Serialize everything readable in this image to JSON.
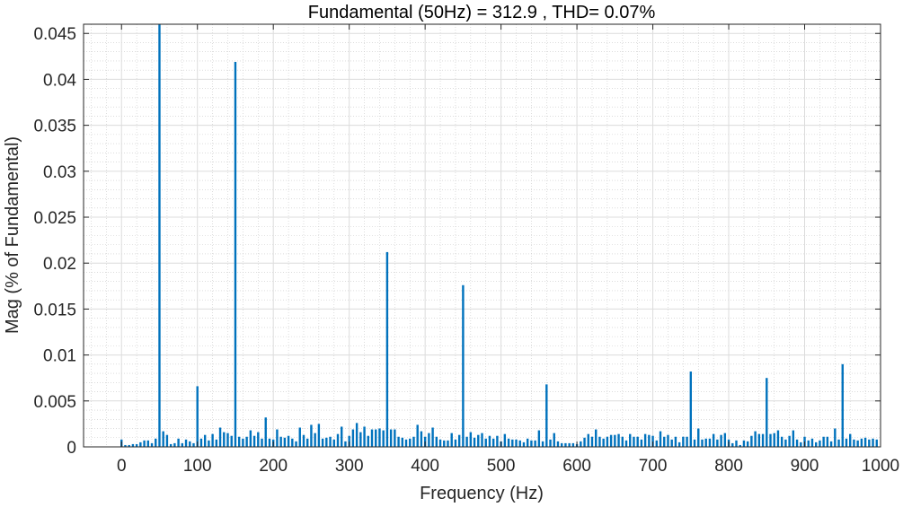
{
  "chart_data": {
    "type": "bar",
    "title": "Fundamental (50Hz) = 312.9 , THD= 0.07%",
    "xlabel": "Frequency (Hz)",
    "ylabel": "Mag (% of Fundamental)",
    "xlim": [
      -50,
      1000
    ],
    "ylim": [
      0,
      0.046
    ],
    "xticks": [
      0,
      100,
      200,
      300,
      400,
      500,
      600,
      700,
      800,
      900,
      1000
    ],
    "xtick_labels": [
      "0",
      "100",
      "200",
      "300",
      "400",
      "500",
      "600",
      "700",
      "800",
      "900",
      "1000"
    ],
    "yticks": [
      0,
      0.005,
      0.01,
      0.015,
      0.02,
      0.025,
      0.03,
      0.035,
      0.04,
      0.045
    ],
    "ytick_labels": [
      "0",
      "0.005",
      "0.01",
      "0.015",
      "0.02",
      "0.025",
      "0.03",
      "0.035",
      "0.04",
      "0.045"
    ],
    "grid": true,
    "minor_grid": true,
    "bar_color": "#0072BD",
    "x_step": 5,
    "series": [
      {
        "values": [
          0.0008,
          0.0002,
          0.0002,
          0.0003,
          0.0003,
          0.0005,
          0.0007,
          0.0007,
          0.0004,
          0.0009,
          0.046,
          0.0017,
          0.0013,
          0.0003,
          0.0004,
          0.0009,
          0.0004,
          0.0008,
          0.0006,
          0.0004,
          0.0066,
          0.0009,
          0.0013,
          0.0007,
          0.0014,
          0.0008,
          0.0021,
          0.0016,
          0.0015,
          0.0012,
          0.0419,
          0.0011,
          0.0009,
          0.0011,
          0.0018,
          0.0012,
          0.0016,
          0.0009,
          0.0032,
          0.0009,
          0.0008,
          0.0019,
          0.0011,
          0.001,
          0.0012,
          0.0009,
          0.0006,
          0.0021,
          0.0013,
          0.0009,
          0.0024,
          0.0015,
          0.0025,
          0.0009,
          0.001,
          0.0011,
          0.0008,
          0.0014,
          0.0022,
          0.0006,
          0.0012,
          0.0019,
          0.0026,
          0.0016,
          0.0022,
          0.0012,
          0.0019,
          0.0019,
          0.002,
          0.0018,
          0.0212,
          0.0019,
          0.0019,
          0.0011,
          0.001,
          0.0008,
          0.0009,
          0.0011,
          0.0024,
          0.0017,
          0.0011,
          0.0015,
          0.0021,
          0.0011,
          0.0008,
          0.0007,
          0.0007,
          0.0015,
          0.0008,
          0.0013,
          0.0176,
          0.0011,
          0.0016,
          0.001,
          0.0013,
          0.0015,
          0.0009,
          0.0012,
          0.0009,
          0.0012,
          0.0006,
          0.0014,
          0.0009,
          0.0008,
          0.0008,
          0.0007,
          0.0005,
          0.0009,
          0.0007,
          0.0007,
          0.0018,
          0.0006,
          0.0068,
          0.0008,
          0.0015,
          0.0006,
          0.0004,
          0.0004,
          0.0004,
          0.0004,
          0.0003,
          0.0006,
          0.001,
          0.0014,
          0.0011,
          0.0019,
          0.0011,
          0.0009,
          0.0011,
          0.0013,
          0.0013,
          0.0014,
          0.0011,
          0.0007,
          0.0014,
          0.0011,
          0.0011,
          0.0008,
          0.0014,
          0.0013,
          0.0012,
          0.0007,
          0.0017,
          0.0011,
          0.0013,
          0.0008,
          0.0011,
          0.0005,
          0.0011,
          0.0011,
          0.0082,
          0.0008,
          0.002,
          0.0008,
          0.0009,
          0.0009,
          0.0014,
          0.0008,
          0.0013,
          0.0015,
          0.0008,
          0.0004,
          0.0007,
          0.0002,
          0.0007,
          0.0006,
          0.0012,
          0.0017,
          0.0014,
          0.0014,
          0.0075,
          0.0014,
          0.0015,
          0.0018,
          0.0011,
          0.0008,
          0.0012,
          0.0018,
          0.0008,
          0.0005,
          0.0011,
          0.0007,
          0.0009,
          0.0005,
          0.0007,
          0.0011,
          0.0011,
          0.0006,
          0.002,
          0.0008,
          0.009,
          0.0009,
          0.0014,
          0.0008,
          0.0007,
          0.0009,
          0.001,
          0.0008,
          0.0009,
          0.0008
        ]
      }
    ]
  }
}
